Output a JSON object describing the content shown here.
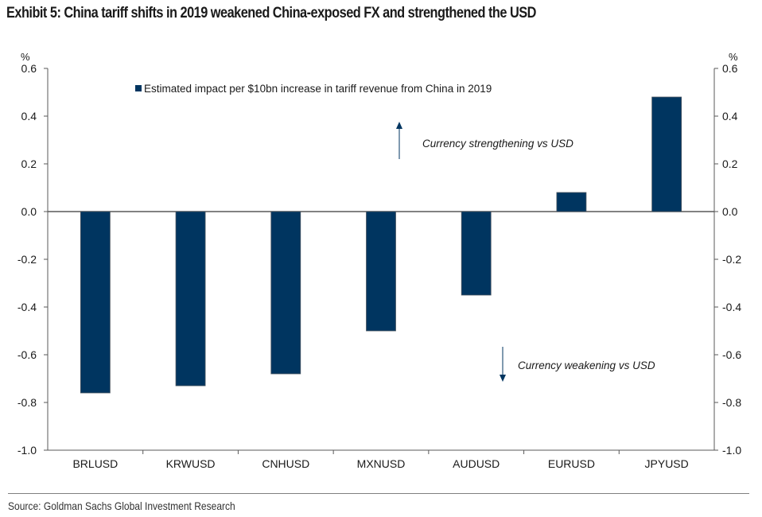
{
  "title": "Exhibit 5: China tariff shifts in 2019 weakened China-exposed FX and strengthened the USD",
  "source": "Source: Goldman Sachs Global Investment Research",
  "colors": {
    "bar": "#003560",
    "axis": "#595959",
    "text": "#1a1a1a"
  },
  "chart_data": {
    "type": "bar",
    "title": "Exhibit 5: China tariff shifts in 2019 weakened China-exposed FX and strengthened the USD",
    "categories": [
      "BRLUSD",
      "KRWUSD",
      "CNHUSD",
      "MXNUSD",
      "AUDUSD",
      "EURUSD",
      "JPYUSD"
    ],
    "series": [
      {
        "name": "Estimated impact per $10bn increase in tariff revenue from China in 2019",
        "values": [
          -0.76,
          -0.73,
          -0.68,
          -0.5,
          -0.35,
          0.08,
          0.48
        ]
      }
    ],
    "ylabel_left": "%",
    "ylabel_right": "%",
    "ylim": [
      -1.0,
      0.6
    ],
    "yticks": [
      0.6,
      0.4,
      0.2,
      0.0,
      -0.2,
      -0.4,
      -0.6,
      -0.8,
      -1.0
    ],
    "ytick_labels": [
      "0.6",
      "0.4",
      "0.2",
      "0.0",
      "-0.2",
      "-0.4",
      "-0.6",
      "-0.8",
      "-1.0"
    ],
    "legend_position": "top-left",
    "grid": false,
    "annotations": [
      {
        "text": "Currency strengthening vs USD",
        "direction": "up"
      },
      {
        "text": "Currency weakening vs USD",
        "direction": "down"
      }
    ]
  }
}
